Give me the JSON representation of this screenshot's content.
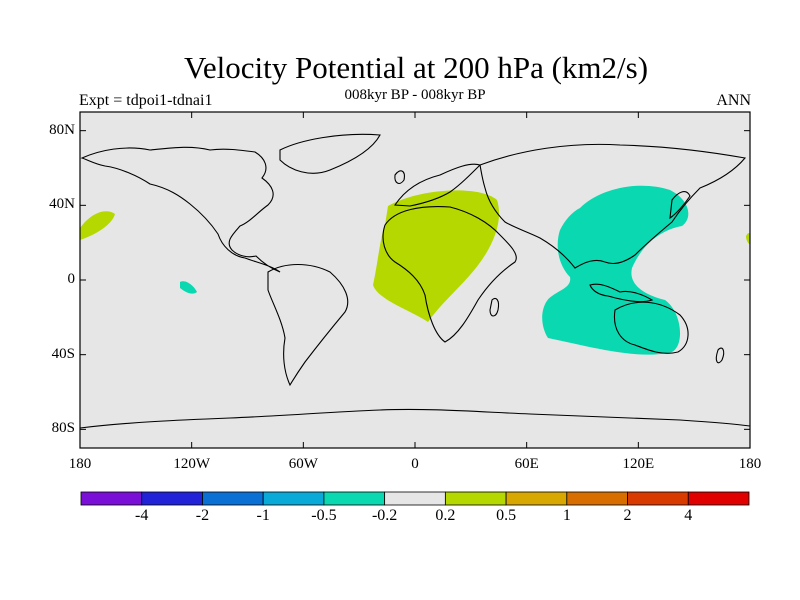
{
  "title": "Velocity Potential at 200 hPa (km2/s)",
  "subtitle": "008kyr BP - 008kyr BP",
  "left_label": "Expt = tdpoi1-tdnai1",
  "right_label": "ANN",
  "lat_ticks": [
    {
      "label": "80N",
      "lat": 80
    },
    {
      "label": "40N",
      "lat": 40
    },
    {
      "label": "0",
      "lat": 0
    },
    {
      "label": "40S",
      "lat": -40
    },
    {
      "label": "80S",
      "lat": -80
    }
  ],
  "lon_ticks": [
    {
      "label": "180",
      "lon": -180
    },
    {
      "label": "120W",
      "lon": -120
    },
    {
      "label": "60W",
      "lon": -60
    },
    {
      "label": "0",
      "lon": 0
    },
    {
      "label": "60E",
      "lon": 60
    },
    {
      "label": "120E",
      "lon": 120
    },
    {
      "label": "180",
      "lon": 180
    }
  ],
  "colorbar": {
    "colors": [
      "#7a10d8",
      "#2222d8",
      "#0a70d4",
      "#0aaad8",
      "#0ad8b0",
      "#e6e6e6",
      "#b4d800",
      "#d8a800",
      "#d86e00",
      "#d83a00",
      "#e00000"
    ],
    "labels": [
      "-4",
      "-2",
      "-1",
      "-0.5",
      "-0.2",
      "0.2",
      "0.5",
      "1",
      "2",
      "4"
    ]
  },
  "map": {
    "background_color": "#e6e6e6",
    "positive_color": "#b4d800",
    "negative_color": "#0ad8b0"
  }
}
